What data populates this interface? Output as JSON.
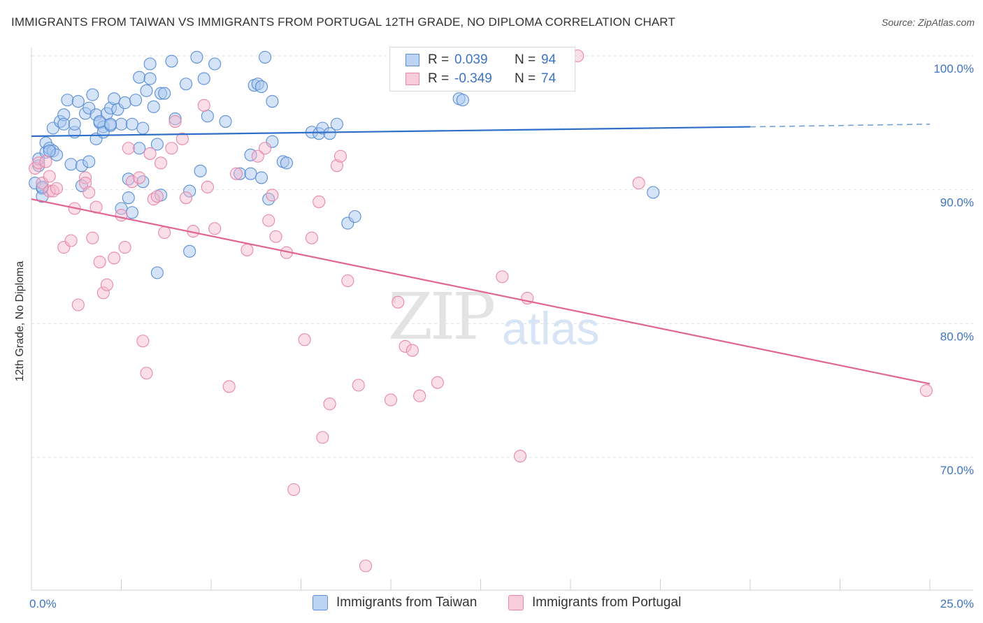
{
  "title": "IMMIGRANTS FROM TAIWAN VS IMMIGRANTS FROM PORTUGAL 12TH GRADE, NO DIPLOMA CORRELATION CHART",
  "source": "Source: ZipAtlas.com",
  "watermark": {
    "zip": "ZIP",
    "atlas": "atlas"
  },
  "legend": {
    "taiwan": {
      "r_label": "R =",
      "r_value": "0.039",
      "n_label": "N =",
      "n_value": "94"
    },
    "portugal": {
      "r_label": "R =",
      "r_value": "-0.349",
      "n_label": "N =",
      "n_value": "74"
    }
  },
  "bottom_legend": {
    "taiwan": "Immigrants from Taiwan",
    "portugal": "Immigrants from Portugal"
  },
  "colors": {
    "taiwan_fill": "#a9c8ef",
    "taiwan_stroke": "#5b8fd6",
    "taiwan_line": "#2f6fc9",
    "portugal_fill": "#f6b9cc",
    "portugal_stroke": "#e888a8",
    "portugal_line": "#e06593"
  },
  "chart_data": {
    "type": "scatter",
    "title": "IMMIGRANTS FROM TAIWAN VS IMMIGRANTS FROM PORTUGAL 12TH GRADE, NO DIPLOMA CORRELATION CHART",
    "xlabel": "",
    "ylabel": "12th Grade, No Diploma",
    "xlim": [
      0,
      25
    ],
    "ylim": [
      60,
      101.5
    ],
    "x_ticks": [
      "0.0%",
      "25.0%"
    ],
    "y_ticks": [
      {
        "value": 100,
        "label": "100.0%"
      },
      {
        "value": 90,
        "label": "90.0%"
      },
      {
        "value": 80,
        "label": "80.0%"
      },
      {
        "value": 70,
        "label": "70.0%"
      }
    ],
    "grid": true,
    "legend_position": "top-center",
    "series": [
      {
        "name": "Immigrants from Taiwan",
        "trend": {
          "x": [
            0,
            20
          ],
          "y": [
            94.0,
            94.7
          ],
          "dashed_to": [
            25,
            94.9
          ]
        },
        "points": [
          [
            0.1,
            90.5
          ],
          [
            0.2,
            91.8
          ],
          [
            0.2,
            92.3
          ],
          [
            0.3,
            90.1
          ],
          [
            0.3,
            89.5
          ],
          [
            0.4,
            93.5
          ],
          [
            0.4,
            92.8
          ],
          [
            0.5,
            93.1
          ],
          [
            0.6,
            94.6
          ],
          [
            0.6,
            92.9
          ],
          [
            0.7,
            92.6
          ],
          [
            0.8,
            95.1
          ],
          [
            0.9,
            95.6
          ],
          [
            0.9,
            94.9
          ],
          [
            1.0,
            96.7
          ],
          [
            1.1,
            91.9
          ],
          [
            1.2,
            94.3
          ],
          [
            1.2,
            94.9
          ],
          [
            1.3,
            96.6
          ],
          [
            1.4,
            91.8
          ],
          [
            1.4,
            90.3
          ],
          [
            1.5,
            95.7
          ],
          [
            1.6,
            96.1
          ],
          [
            1.6,
            92.1
          ],
          [
            1.7,
            97.1
          ],
          [
            1.8,
            95.6
          ],
          [
            1.8,
            93.8
          ],
          [
            1.9,
            95.0
          ],
          [
            2.0,
            94.7
          ],
          [
            2.0,
            94.3
          ],
          [
            2.1,
            95.7
          ],
          [
            2.2,
            96.1
          ],
          [
            2.2,
            94.8
          ],
          [
            2.3,
            96.8
          ],
          [
            2.4,
            96.0
          ],
          [
            2.5,
            94.9
          ],
          [
            2.5,
            88.6
          ],
          [
            2.6,
            96.5
          ],
          [
            2.7,
            89.4
          ],
          [
            2.7,
            90.8
          ],
          [
            2.8,
            88.3
          ],
          [
            2.8,
            94.9
          ],
          [
            2.9,
            96.7
          ],
          [
            3.0,
            98.4
          ],
          [
            3.0,
            93.1
          ],
          [
            3.1,
            90.6
          ],
          [
            3.1,
            94.6
          ],
          [
            3.2,
            97.4
          ],
          [
            3.3,
            99.4
          ],
          [
            3.3,
            98.3
          ],
          [
            3.4,
            96.2
          ],
          [
            3.5,
            93.4
          ],
          [
            3.5,
            83.8
          ],
          [
            3.6,
            97.2
          ],
          [
            3.6,
            89.6
          ],
          [
            3.7,
            97.2
          ],
          [
            3.9,
            99.6
          ],
          [
            4.0,
            95.3
          ],
          [
            4.3,
            97.9
          ],
          [
            4.4,
            89.9
          ],
          [
            4.4,
            85.4
          ],
          [
            4.6,
            99.9
          ],
          [
            4.7,
            91.4
          ],
          [
            4.8,
            98.3
          ],
          [
            4.9,
            95.5
          ],
          [
            5.1,
            99.4
          ],
          [
            5.4,
            95.1
          ],
          [
            5.8,
            91.2
          ],
          [
            6.1,
            92.6
          ],
          [
            6.1,
            91.2
          ],
          [
            6.2,
            97.8
          ],
          [
            6.3,
            97.9
          ],
          [
            6.4,
            97.7
          ],
          [
            6.4,
            90.9
          ],
          [
            6.5,
            99.9
          ],
          [
            6.6,
            89.3
          ],
          [
            6.7,
            93.6
          ],
          [
            6.7,
            96.6
          ],
          [
            7.0,
            92.1
          ],
          [
            7.1,
            92.0
          ],
          [
            7.8,
            94.3
          ],
          [
            8.0,
            94.2
          ],
          [
            8.1,
            94.6
          ],
          [
            8.3,
            94.2
          ],
          [
            8.5,
            94.9
          ],
          [
            8.8,
            87.5
          ],
          [
            9.0,
            88.0
          ],
          [
            11.9,
            96.8
          ],
          [
            12.0,
            96.7
          ],
          [
            17.3,
            89.8
          ],
          [
            0.3,
            90.2
          ],
          [
            1.9,
            95.1
          ],
          [
            2.2,
            94.9
          ],
          [
            0.5,
            92.9
          ]
        ]
      },
      {
        "name": "Immigrants from Portugal",
        "trend": {
          "x": [
            0,
            25
          ],
          "y": [
            89.3,
            75.5
          ]
        },
        "points": [
          [
            0.1,
            91.6
          ],
          [
            0.2,
            92.0
          ],
          [
            0.3,
            90.5
          ],
          [
            0.4,
            92.1
          ],
          [
            0.5,
            91.0
          ],
          [
            0.5,
            89.9
          ],
          [
            0.6,
            89.9
          ],
          [
            0.7,
            90.1
          ],
          [
            0.9,
            85.7
          ],
          [
            1.1,
            86.2
          ],
          [
            1.2,
            88.6
          ],
          [
            1.3,
            81.4
          ],
          [
            1.5,
            90.9
          ],
          [
            1.5,
            90.5
          ],
          [
            1.6,
            89.8
          ],
          [
            1.7,
            86.4
          ],
          [
            1.8,
            88.7
          ],
          [
            1.9,
            84.6
          ],
          [
            2.0,
            82.3
          ],
          [
            2.1,
            82.9
          ],
          [
            2.3,
            84.9
          ],
          [
            2.5,
            88.1
          ],
          [
            2.6,
            85.7
          ],
          [
            2.7,
            93.1
          ],
          [
            2.8,
            90.6
          ],
          [
            3.0,
            90.9
          ],
          [
            3.1,
            78.7
          ],
          [
            3.2,
            76.3
          ],
          [
            3.3,
            92.7
          ],
          [
            3.4,
            89.3
          ],
          [
            3.5,
            89.5
          ],
          [
            3.6,
            92.0
          ],
          [
            3.7,
            86.8
          ],
          [
            3.9,
            93.1
          ],
          [
            4.0,
            95.1
          ],
          [
            4.2,
            93.8
          ],
          [
            4.3,
            89.4
          ],
          [
            4.5,
            86.9
          ],
          [
            4.8,
            96.3
          ],
          [
            4.9,
            90.2
          ],
          [
            5.1,
            87.1
          ],
          [
            5.5,
            75.3
          ],
          [
            5.7,
            91.2
          ],
          [
            6.0,
            85.5
          ],
          [
            6.3,
            92.5
          ],
          [
            6.5,
            93.1
          ],
          [
            6.6,
            87.7
          ],
          [
            6.7,
            89.6
          ],
          [
            6.8,
            86.5
          ],
          [
            7.1,
            85.3
          ],
          [
            7.3,
            67.6
          ],
          [
            7.6,
            78.8
          ],
          [
            7.8,
            86.4
          ],
          [
            8.0,
            89.1
          ],
          [
            8.1,
            71.5
          ],
          [
            8.3,
            74.0
          ],
          [
            8.5,
            91.8
          ],
          [
            8.6,
            92.5
          ],
          [
            8.8,
            83.2
          ],
          [
            9.1,
            75.4
          ],
          [
            9.3,
            61.9
          ],
          [
            10.0,
            74.3
          ],
          [
            10.2,
            81.6
          ],
          [
            10.4,
            78.3
          ],
          [
            10.6,
            78.0
          ],
          [
            10.8,
            74.6
          ],
          [
            11.3,
            75.6
          ],
          [
            13.1,
            83.5
          ],
          [
            13.4,
            100.0
          ],
          [
            13.6,
            70.1
          ],
          [
            13.8,
            81.9
          ],
          [
            15.2,
            100.0
          ],
          [
            16.9,
            90.5
          ],
          [
            24.9,
            75.0
          ]
        ]
      }
    ]
  }
}
